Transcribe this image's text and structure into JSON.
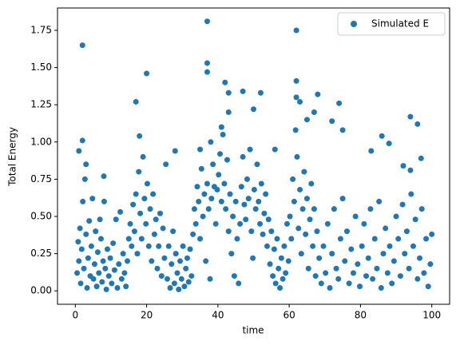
{
  "chart_data": {
    "type": "scatter",
    "xlabel": "time",
    "ylabel": "Total Energy",
    "xlim": [
      -5,
      105
    ],
    "ylim": [
      -0.09,
      1.9
    ],
    "xticks": [
      0,
      20,
      40,
      60,
      80,
      100
    ],
    "yticks": [
      {
        "value": 0,
        "label": "0.00"
      },
      {
        "value": 0.25,
        "label": "0.25"
      },
      {
        "value": 0.5,
        "label": "0.50"
      },
      {
        "value": 0.75,
        "label": "0.75"
      },
      {
        "value": 1,
        "label": "1.00"
      },
      {
        "value": 1.25,
        "label": "1.25"
      },
      {
        "value": 1.5,
        "label": "1.50"
      },
      {
        "value": 1.75,
        "label": "1.75"
      }
    ],
    "legend": "upper right",
    "x": [
      2,
      2,
      17,
      20,
      37,
      37,
      37,
      42,
      47,
      43,
      52,
      50,
      62,
      62,
      62,
      63,
      67,
      68,
      74,
      94,
      96,
      65,
      72,
      43,
      41,
      75,
      86,
      83,
      88,
      92,
      94,
      97,
      1,
      3,
      8,
      28,
      35,
      38,
      56,
      18,
      0.5,
      0.8,
      1.0,
      1.3,
      1.5,
      1.8,
      2.1,
      2.4,
      2.7,
      3.0,
      3.3,
      3.6,
      3.9,
      4.2,
      4.5,
      4.8,
      5.1,
      5.4,
      5.7,
      6.0,
      6.3,
      6.6,
      6.9,
      7.2,
      7.5,
      7.8,
      8.1,
      8.4,
      8.7,
      9.0,
      9.4,
      9.8,
      10.2,
      10.6,
      11.0,
      11.4,
      11.8,
      12.2,
      12.6,
      13.0,
      13.4,
      13.8,
      14.2,
      14.6,
      15.0,
      15.4,
      15.8,
      16.2,
      16.6,
      17.0,
      17.4,
      17.8,
      18.2,
      18.6,
      19.0,
      19.4,
      19.8,
      20.2,
      20.6,
      21.0,
      21.4,
      21.8,
      22.2,
      22.6,
      23.0,
      23.4,
      23.8,
      24.2,
      24.6,
      25.0,
      25.4,
      25.8,
      26.2,
      26.6,
      27.0,
      27.4,
      27.8,
      28.2,
      28.6,
      29.0,
      29.4,
      29.8,
      30.2,
      30.6,
      31.0,
      31.4,
      31.8,
      32.2,
      32.6,
      33.0,
      33.4,
      33.8,
      34.2,
      34.6,
      35.0,
      35.4,
      35.8,
      36.2,
      36.6,
      37.0,
      37.4,
      37.8,
      38.2,
      38.6,
      39.0,
      39.4,
      39.8,
      40.2,
      40.6,
      41.0,
      41.4,
      41.8,
      42.2,
      42.6,
      43.0,
      43.4,
      43.8,
      44.2,
      44.6,
      45.0,
      45.4,
      45.8,
      46.2,
      46.6,
      47.0,
      47.4,
      47.8,
      48.2,
      48.6,
      49.0,
      49.4,
      49.8,
      50.2,
      50.6,
      51.0,
      51.4,
      51.8,
      52.2,
      52.6,
      53.0,
      53.4,
      53.8,
      54.2,
      54.6,
      55.0,
      55.4,
      55.8,
      56.2,
      56.6,
      57.0,
      57.4,
      57.8,
      58.2,
      58.6,
      59.0,
      59.4,
      59.8,
      60.2,
      60.6,
      61.0,
      61.4,
      61.8,
      62.2,
      62.6,
      63.0,
      63.4,
      63.8,
      64.2,
      64.6,
      65.0,
      65.4,
      65.8,
      66.2,
      66.6,
      67.0,
      67.4,
      67.8,
      68.4,
      69.0,
      69.6,
      70.2,
      70.8,
      71.4,
      72.0,
      72.6,
      73.2,
      73.8,
      74.4,
      75.0,
      75.6,
      76.2,
      76.8,
      77.4,
      78.0,
      78.6,
      79.2,
      79.8,
      80.4,
      81.0,
      81.6,
      82.2,
      82.8,
      83.4,
      84.0,
      84.6,
      85.2,
      85.8,
      86.4,
      87.0,
      87.6,
      88.2,
      88.8,
      89.4,
      90.0,
      90.6,
      91.2,
      91.8,
      92.4,
      93.0,
      93.6,
      94.2,
      94.8,
      95.4,
      96.0,
      96.6,
      97.2,
      97.8,
      98.4,
      99.0,
      99.6,
      100.0
    ],
    "series": [
      {
        "name": "Simulated E",
        "color": "#1f77b4",
        "values": [
          1.65,
          1.01,
          1.27,
          1.46,
          1.81,
          1.53,
          1.47,
          1.4,
          1.34,
          1.33,
          1.33,
          1.22,
          1.75,
          1.41,
          1.3,
          1.27,
          1.2,
          1.32,
          1.26,
          1.17,
          1.12,
          1.15,
          1.14,
          1.2,
          1.1,
          1.08,
          1.04,
          0.94,
          0.99,
          0.84,
          0.81,
          0.89,
          0.94,
          0.85,
          0.77,
          0.94,
          0.95,
          1.0,
          0.95,
          1.04,
          0.12,
          0.33,
          0.2,
          0.42,
          0.05,
          0.28,
          0.6,
          0.15,
          0.75,
          0.38,
          0.02,
          0.22,
          0.47,
          0.1,
          0.3,
          0.62,
          0.08,
          0.18,
          0.4,
          0.03,
          0.26,
          0.12,
          0.48,
          0.35,
          0.06,
          0.2,
          0.6,
          0.15,
          0.01,
          0.28,
          0.1,
          0.22,
          0.05,
          0.32,
          0.14,
          0.48,
          0.02,
          0.18,
          0.53,
          0.08,
          0.25,
          0.12,
          0.03,
          0.2,
          0.35,
          0.45,
          0.3,
          0.58,
          0.4,
          0.65,
          0.25,
          0.8,
          0.52,
          0.35,
          0.9,
          0.62,
          0.45,
          0.72,
          0.3,
          0.55,
          0.2,
          0.65,
          0.38,
          0.48,
          0.15,
          0.3,
          0.52,
          0.1,
          0.42,
          0.22,
          0.85,
          0.08,
          0.3,
          0.02,
          0.18,
          0.4,
          0.05,
          0.25,
          0.12,
          0.01,
          0.2,
          0.08,
          0.3,
          0.03,
          0.15,
          0.22,
          0.06,
          0.28,
          0.1,
          0.38,
          0.55,
          0.45,
          0.7,
          0.6,
          0.35,
          0.82,
          0.5,
          0.65,
          0.2,
          0.72,
          0.55,
          0.08,
          0.62,
          0.85,
          0.7,
          0.45,
          0.68,
          0.78,
          0.92,
          0.6,
          1.05,
          0.72,
          0.55,
          0.88,
          0.4,
          0.65,
          0.25,
          0.5,
          0.1,
          0.6,
          0.35,
          0.05,
          0.45,
          0.7,
          0.9,
          0.58,
          0.48,
          0.75,
          0.62,
          0.95,
          0.4,
          0.22,
          0.68,
          0.55,
          0.85,
          0.6,
          0.45,
          0.72,
          0.38,
          0.52,
          0.65,
          0.3,
          0.48,
          0.18,
          0.4,
          0.1,
          0.28,
          0.05,
          0.35,
          0.15,
          0.02,
          0.22,
          0.08,
          0.3,
          0.12,
          0.45,
          0.2,
          0.5,
          0.35,
          0.75,
          0.6,
          1.08,
          0.9,
          0.42,
          0.68,
          0.25,
          0.55,
          0.8,
          0.38,
          0.62,
          0.15,
          0.48,
          0.72,
          0.3,
          0.55,
          0.1,
          0.4,
          0.22,
          0.05,
          0.3,
          0.12,
          0.45,
          0.02,
          0.25,
          0.55,
          0.15,
          0.08,
          0.35,
          0.62,
          0.2,
          0.4,
          0.05,
          0.28,
          0.12,
          0.5,
          0.18,
          0.03,
          0.3,
          0.45,
          0.1,
          0.22,
          0.55,
          0.08,
          0.35,
          0.15,
          0.6,
          0.02,
          0.25,
          0.42,
          0.12,
          0.3,
          0.05,
          0.2,
          0.5,
          0.35,
          0.1,
          0.58,
          0.25,
          0.4,
          0.15,
          0.65,
          0.3,
          0.48,
          0.08,
          0.22,
          0.55,
          0.12,
          0.35,
          0.03,
          0.18,
          0.38
        ]
      }
    ]
  }
}
